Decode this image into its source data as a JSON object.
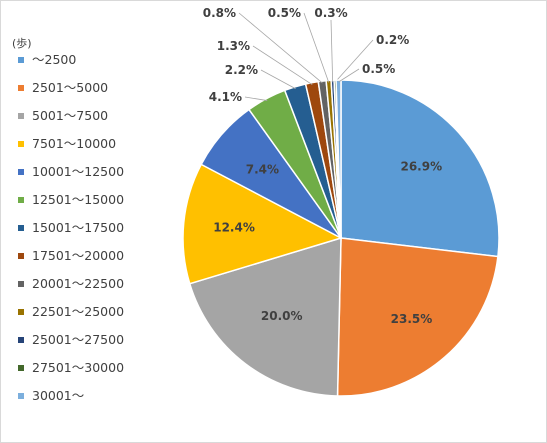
{
  "chart_data": {
    "type": "pie",
    "legend_title": "(歩)",
    "legend_position": "left",
    "categories": [
      "～2500",
      "2501～5000",
      "5001～7500",
      "7501～10000",
      "10001～12500",
      "12501～15000",
      "15001～17500",
      "17501～20000",
      "20001～22500",
      "22501～25000",
      "25001～27500",
      "27501～30000",
      "30001～"
    ],
    "values": [
      26.9,
      23.5,
      20.0,
      12.4,
      7.4,
      4.1,
      2.2,
      1.3,
      0.8,
      0.5,
      0.3,
      0.2,
      0.5
    ],
    "data_labels": [
      "26.9%",
      "23.5%",
      "20.0%",
      "12.4%",
      "7.4%",
      "4.1%",
      "2.2%",
      "1.3%",
      "0.8%",
      "0.5%",
      "0.3%",
      "0.2%",
      "0.5%"
    ],
    "colors": [
      "#5B9BD5",
      "#ED7D31",
      "#A5A5A5",
      "#FFC000",
      "#4472C4",
      "#70AD47",
      "#255E91",
      "#9E480E",
      "#636363",
      "#997300",
      "#264478",
      "#43682B",
      "#7CAFDD"
    ]
  }
}
